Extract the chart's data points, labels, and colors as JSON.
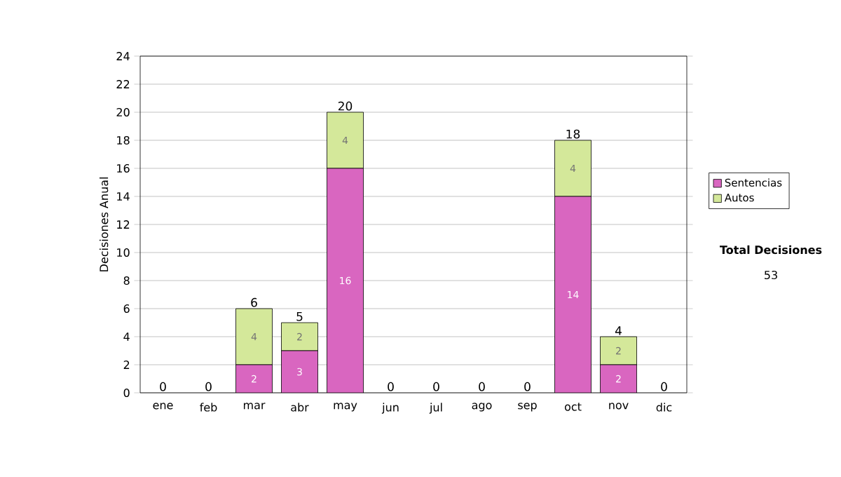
{
  "chart_data": {
    "type": "bar",
    "stacked": true,
    "ylabel": "Decisiones Anual",
    "categories": [
      "ene",
      "feb",
      "mar",
      "abr",
      "may",
      "jun",
      "jul",
      "ago",
      "sep",
      "oct",
      "nov",
      "dic"
    ],
    "series": [
      {
        "name": "Sentencias",
        "color": "#d966c0",
        "values": [
          0,
          0,
          2,
          3,
          16,
          0,
          0,
          0,
          0,
          14,
          2,
          0
        ],
        "value_labels": [
          null,
          null,
          "2",
          "3",
          "16",
          null,
          null,
          null,
          null,
          "14",
          "2",
          null
        ]
      },
      {
        "name": "Autos",
        "color": "#d4e89a",
        "values": [
          0,
          0,
          4,
          2,
          4,
          0,
          0,
          0,
          0,
          4,
          2,
          0
        ],
        "value_labels": [
          null,
          null,
          "4",
          "2",
          "4",
          null,
          null,
          null,
          null,
          "4",
          "2",
          null
        ]
      }
    ],
    "totals": [
      "0",
      "0",
      "6",
      "5",
      "20",
      "0",
      "0",
      "0",
      "0",
      "18",
      "4",
      "0"
    ],
    "ylim": [
      0,
      24
    ],
    "yticks": [
      0,
      2,
      4,
      6,
      8,
      10,
      12,
      14,
      16,
      18,
      20,
      22,
      24
    ],
    "grid": "y",
    "legend": "right",
    "annotations": [
      "Total Decisiones",
      "53"
    ]
  }
}
